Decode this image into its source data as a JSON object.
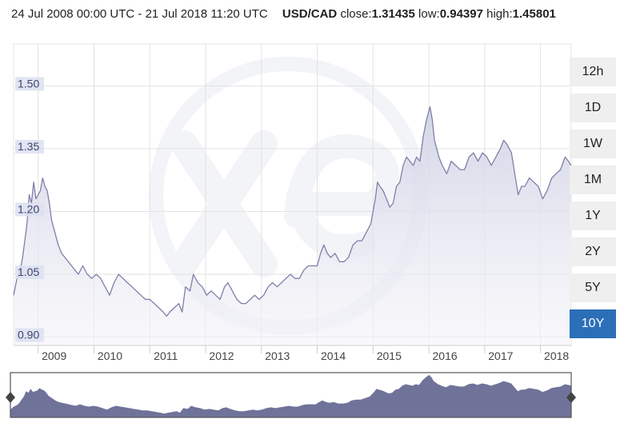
{
  "header": {
    "date_range": "24 Jul 2008 00:00 UTC - 21 Jul 2018 11:20 UTC",
    "pair": "USD/CAD",
    "close_label": "close:",
    "close_value": "1.31435",
    "low_label": "low:",
    "low_value": "0.94397",
    "high_label": "high:",
    "high_value": "1.45801"
  },
  "range_buttons": [
    {
      "label": "12h",
      "active": false
    },
    {
      "label": "1D",
      "active": false
    },
    {
      "label": "1W",
      "active": false
    },
    {
      "label": "1M",
      "active": false
    },
    {
      "label": "1Y",
      "active": false
    },
    {
      "label": "2Y",
      "active": false
    },
    {
      "label": "5Y",
      "active": false
    },
    {
      "label": "10Y",
      "active": true
    }
  ],
  "colors": {
    "line": "#7d80a8",
    "area_top": "#cfd1e4",
    "navigator_fill": "#6f7399",
    "active_button": "#2a6fb8",
    "grid": "#e2e2e2",
    "axis_label_bg": "#dcdff0"
  },
  "chart_data": {
    "type": "area",
    "title": "",
    "xlabel": "",
    "ylabel": "",
    "y_ticks": [
      0.9,
      1.05,
      1.2,
      1.35,
      1.5
    ],
    "y_tick_labels": [
      "0.90",
      "1.05",
      "1.20",
      "1.35",
      "1.50"
    ],
    "x_ticks": [
      2009,
      2010,
      2011,
      2012,
      2013,
      2014,
      2015,
      2016,
      2017,
      2018
    ],
    "x_tick_labels": [
      "2009",
      "2010",
      "2011",
      "2012",
      "2013",
      "2014",
      "2015",
      "2016",
      "2017",
      "2018"
    ],
    "xlim": [
      2008.56,
      2018.55
    ],
    "ylim": [
      0.88,
      1.6
    ],
    "grid": true,
    "series": [
      {
        "x": [
          2008.56,
          2008.62,
          2008.68,
          2008.72,
          2008.76,
          2008.8,
          2008.84,
          2008.88,
          2008.92,
          2008.96,
          2009.0,
          2009.04,
          2009.08,
          2009.12,
          2009.16,
          2009.2,
          2009.24,
          2009.3,
          2009.36,
          2009.42,
          2009.48,
          2009.54,
          2009.6,
          2009.66,
          2009.72,
          2009.8,
          2009.88,
          2009.96,
          2010.04,
          2010.12,
          2010.2,
          2010.28,
          2010.36,
          2010.44,
          2010.52,
          2010.6,
          2010.68,
          2010.76,
          2010.84,
          2010.92,
          2011.0,
          2011.08,
          2011.16,
          2011.24,
          2011.3,
          2011.36,
          2011.44,
          2011.52,
          2011.58,
          2011.64,
          2011.72,
          2011.78,
          2011.86,
          2011.94,
          2012.02,
          2012.1,
          2012.18,
          2012.26,
          2012.34,
          2012.4,
          2012.48,
          2012.56,
          2012.64,
          2012.72,
          2012.8,
          2012.88,
          2012.96,
          2013.04,
          2013.12,
          2013.2,
          2013.28,
          2013.36,
          2013.44,
          2013.52,
          2013.6,
          2013.68,
          2013.76,
          2013.84,
          2013.92,
          2014.0,
          2014.06,
          2014.12,
          2014.18,
          2014.24,
          2014.32,
          2014.4,
          2014.48,
          2014.56,
          2014.64,
          2014.72,
          2014.8,
          2014.88,
          2014.96,
          2015.04,
          2015.08,
          2015.12,
          2015.18,
          2015.24,
          2015.3,
          2015.36,
          2015.42,
          2015.48,
          2015.54,
          2015.6,
          2015.66,
          2015.72,
          2015.78,
          2015.84,
          2015.9,
          2015.96,
          2016.02,
          2016.06,
          2016.1,
          2016.14,
          2016.18,
          2016.24,
          2016.32,
          2016.4,
          2016.48,
          2016.56,
          2016.64,
          2016.72,
          2016.8,
          2016.88,
          2016.96,
          2017.04,
          2017.12,
          2017.2,
          2017.28,
          2017.34,
          2017.4,
          2017.48,
          2017.54,
          2017.6,
          2017.66,
          2017.72,
          2017.8,
          2017.88,
          2017.96,
          2018.04,
          2018.12,
          2018.2,
          2018.28,
          2018.36,
          2018.44,
          2018.5,
          2018.55
        ],
        "y": [
          1.0,
          1.04,
          1.06,
          1.09,
          1.13,
          1.17,
          1.24,
          1.22,
          1.27,
          1.23,
          1.24,
          1.25,
          1.28,
          1.26,
          1.25,
          1.22,
          1.18,
          1.15,
          1.12,
          1.1,
          1.09,
          1.08,
          1.07,
          1.06,
          1.05,
          1.07,
          1.05,
          1.04,
          1.05,
          1.04,
          1.02,
          1.0,
          1.03,
          1.05,
          1.04,
          1.03,
          1.02,
          1.01,
          1.0,
          0.99,
          0.99,
          0.98,
          0.97,
          0.96,
          0.95,
          0.96,
          0.97,
          0.98,
          0.96,
          1.02,
          1.01,
          1.05,
          1.03,
          1.02,
          1.0,
          1.01,
          1.0,
          0.99,
          1.02,
          1.03,
          1.01,
          0.99,
          0.98,
          0.98,
          0.99,
          1.0,
          0.99,
          1.0,
          1.02,
          1.03,
          1.02,
          1.03,
          1.04,
          1.05,
          1.04,
          1.04,
          1.06,
          1.07,
          1.07,
          1.07,
          1.1,
          1.12,
          1.1,
          1.09,
          1.1,
          1.08,
          1.08,
          1.09,
          1.12,
          1.13,
          1.13,
          1.15,
          1.17,
          1.23,
          1.27,
          1.26,
          1.25,
          1.23,
          1.21,
          1.22,
          1.26,
          1.27,
          1.31,
          1.33,
          1.32,
          1.31,
          1.33,
          1.32,
          1.38,
          1.42,
          1.45,
          1.42,
          1.37,
          1.35,
          1.33,
          1.31,
          1.29,
          1.32,
          1.31,
          1.3,
          1.3,
          1.33,
          1.34,
          1.32,
          1.34,
          1.33,
          1.31,
          1.33,
          1.35,
          1.37,
          1.36,
          1.34,
          1.29,
          1.24,
          1.26,
          1.26,
          1.28,
          1.27,
          1.26,
          1.23,
          1.25,
          1.28,
          1.29,
          1.3,
          1.33,
          1.32,
          1.31
        ]
      }
    ]
  }
}
